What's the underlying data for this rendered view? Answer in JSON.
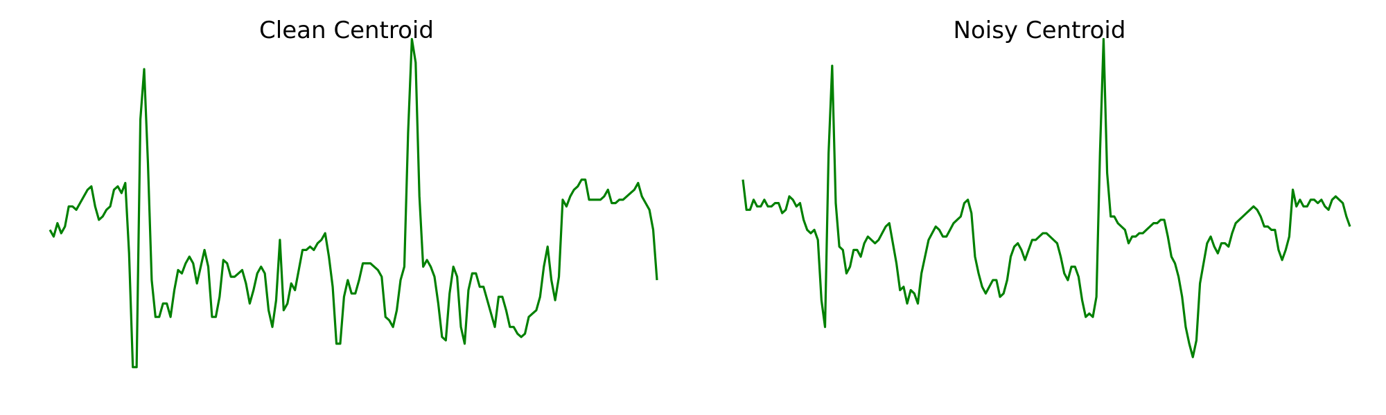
{
  "line_color": "#008000",
  "chart_data": [
    {
      "type": "line",
      "title": "Clean Centroid",
      "xlabel": "",
      "ylabel": "",
      "grid": false,
      "axes_visible": false,
      "ylim": [
        -2.3,
        2.4
      ],
      "series": [
        {
          "values": [
            0.0,
            -0.1,
            0.1,
            -0.05,
            0.05,
            0.35,
            0.35,
            0.3,
            0.4,
            0.5,
            0.6,
            0.65,
            0.35,
            0.15,
            0.2,
            0.3,
            0.35,
            0.6,
            0.65,
            0.55,
            0.7,
            -0.35,
            -2.05,
            -2.05,
            1.65,
            2.4,
            1.0,
            -0.75,
            -1.3,
            -1.3,
            -1.1,
            -1.1,
            -1.3,
            -0.9,
            -0.6,
            -0.65,
            -0.5,
            -0.4,
            -0.5,
            -0.8,
            -0.55,
            -0.3,
            -0.55,
            -1.3,
            -1.3,
            -1.0,
            -0.45,
            -0.5,
            -0.7,
            -0.7,
            -0.65,
            -0.6,
            -0.8,
            -1.1,
            -0.9,
            -0.65,
            -0.55,
            -0.65,
            -1.2,
            -1.45,
            -1.05,
            -0.15,
            -1.2,
            -1.1,
            -0.8,
            -0.9,
            -0.6,
            -0.3,
            -0.3,
            -0.25,
            -0.3,
            -0.2,
            -0.15,
            -0.05,
            -0.4,
            -0.85,
            -1.7,
            -1.7,
            -1.0,
            -0.75,
            -0.95,
            -0.95,
            -0.75,
            -0.5,
            -0.5,
            -0.5,
            -0.55,
            -0.6,
            -0.7,
            -1.3,
            -1.35,
            -1.45,
            -1.2,
            -0.75,
            -0.55,
            1.45,
            2.85,
            2.5,
            0.5,
            -0.55,
            -0.45,
            -0.55,
            -0.7,
            -1.1,
            -1.6,
            -1.65,
            -0.95,
            -0.55,
            -0.7,
            -1.45,
            -1.7,
            -0.9,
            -0.65,
            -0.65,
            -0.85,
            -0.85,
            -1.05,
            -1.25,
            -1.45,
            -1.0,
            -1.0,
            -1.2,
            -1.45,
            -1.45,
            -1.55,
            -1.6,
            -1.55,
            -1.3,
            -1.25,
            -1.2,
            -1.0,
            -0.55,
            -0.25,
            -0.75,
            -1.05,
            -0.7,
            0.45,
            0.35,
            0.5,
            0.6,
            0.65,
            0.75,
            0.75,
            0.45,
            0.45,
            0.45,
            0.45,
            0.5,
            0.6,
            0.4,
            0.4,
            0.45,
            0.45,
            0.5,
            0.55,
            0.6,
            0.7,
            0.5,
            0.4,
            0.3,
            0.0,
            -0.75
          ]
        }
      ]
    },
    {
      "type": "line",
      "title": "Noisy Centroid",
      "xlabel": "",
      "ylabel": "",
      "grid": false,
      "axes_visible": false,
      "ylim": [
        -2.3,
        2.4
      ],
      "series": [
        {
          "values": [
            0.75,
            0.3,
            0.3,
            0.45,
            0.35,
            0.35,
            0.45,
            0.35,
            0.35,
            0.4,
            0.4,
            0.25,
            0.3,
            0.5,
            0.45,
            0.35,
            0.4,
            0.15,
            0.0,
            -0.05,
            0.0,
            -0.15,
            -1.05,
            -1.45,
            1.15,
            2.45,
            0.4,
            -0.25,
            -0.3,
            -0.65,
            -0.55,
            -0.3,
            -0.3,
            -0.4,
            -0.2,
            -0.1,
            -0.15,
            -0.2,
            -0.15,
            -0.05,
            0.05,
            0.1,
            -0.2,
            -0.5,
            -0.9,
            -0.85,
            -1.1,
            -0.9,
            -0.95,
            -1.1,
            -0.65,
            -0.4,
            -0.15,
            -0.05,
            0.05,
            0.0,
            -0.1,
            -0.1,
            0.0,
            0.1,
            0.15,
            0.2,
            0.4,
            0.45,
            0.25,
            -0.4,
            -0.65,
            -0.85,
            -0.95,
            -0.85,
            -0.75,
            -0.75,
            -1.0,
            -0.95,
            -0.75,
            -0.4,
            -0.25,
            -0.2,
            -0.3,
            -0.45,
            -0.3,
            -0.15,
            -0.15,
            -0.1,
            -0.05,
            -0.05,
            -0.1,
            -0.15,
            -0.2,
            -0.4,
            -0.65,
            -0.75,
            -0.55,
            -0.55,
            -0.7,
            -1.05,
            -1.3,
            -1.25,
            -1.3,
            -1.0,
            1.15,
            2.85,
            0.85,
            0.2,
            0.2,
            0.1,
            0.05,
            0.0,
            -0.2,
            -0.1,
            -0.1,
            -0.05,
            -0.05,
            0.0,
            0.05,
            0.1,
            0.1,
            0.15,
            0.15,
            -0.1,
            -0.4,
            -0.5,
            -0.7,
            -1.0,
            -1.45,
            -1.7,
            -1.9,
            -1.65,
            -0.8,
            -0.5,
            -0.2,
            -0.1,
            -0.25,
            -0.35,
            -0.2,
            -0.2,
            -0.25,
            -0.05,
            0.1,
            0.15,
            0.2,
            0.25,
            0.3,
            0.35,
            0.3,
            0.2,
            0.05,
            0.05,
            0.0,
            0.0,
            -0.3,
            -0.45,
            -0.3,
            -0.1,
            0.6,
            0.35,
            0.45,
            0.35,
            0.35,
            0.45,
            0.45,
            0.4,
            0.45,
            0.35,
            0.3,
            0.45,
            0.5,
            0.45,
            0.4,
            0.2,
            0.05
          ]
        }
      ]
    }
  ]
}
